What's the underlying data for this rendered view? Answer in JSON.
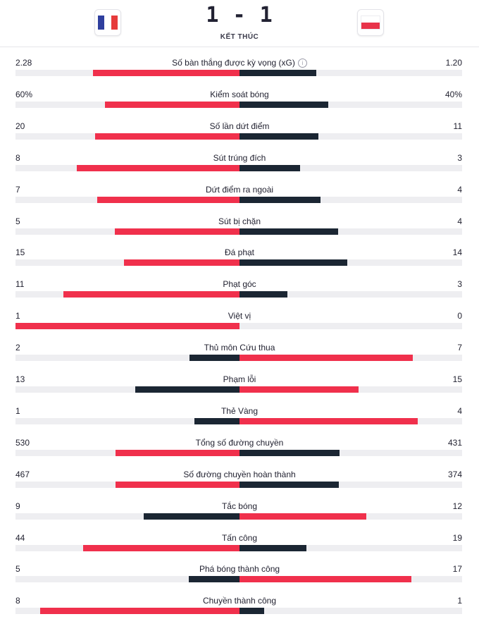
{
  "match": {
    "score": "1 - 1",
    "status": "KẾT THÚC",
    "home_flag": "france-flag",
    "away_flag": "poland-flag"
  },
  "colors": {
    "leading": "#f0304c",
    "trailing": "#1b2633",
    "track": "#eeeef1"
  },
  "stats": [
    {
      "label": "Số bàn thắng được kỳ vọng (xG)",
      "home": "2.28",
      "away": "1.20",
      "home_share": 0.655,
      "away_share": 0.345,
      "info": true
    },
    {
      "label": "Kiểm soát bóng",
      "home": "60%",
      "away": "40%",
      "home_share": 0.6,
      "away_share": 0.4
    },
    {
      "label": "Số lần dứt điểm",
      "home": "20",
      "away": "11",
      "home_share": 0.645,
      "away_share": 0.355
    },
    {
      "label": "Sút trúng đích",
      "home": "8",
      "away": "3",
      "home_share": 0.727,
      "away_share": 0.273
    },
    {
      "label": "Dứt điểm ra ngoài",
      "home": "7",
      "away": "4",
      "home_share": 0.636,
      "away_share": 0.364
    },
    {
      "label": "Sút bị chặn",
      "home": "5",
      "away": "4",
      "home_share": 0.556,
      "away_share": 0.444
    },
    {
      "label": "Đá phạt",
      "home": "15",
      "away": "14",
      "home_share": 0.517,
      "away_share": 0.483
    },
    {
      "label": "Phạt góc",
      "home": "11",
      "away": "3",
      "home_share": 0.786,
      "away_share": 0.214
    },
    {
      "label": "Việt vị",
      "home": "1",
      "away": "0",
      "home_share": 1.0,
      "away_share": 0.0
    },
    {
      "label": "Thủ môn Cứu thua",
      "home": "2",
      "away": "7",
      "home_share": 0.222,
      "away_share": 0.778
    },
    {
      "label": "Phạm lỗi",
      "home": "13",
      "away": "15",
      "home_share": 0.464,
      "away_share": 0.536
    },
    {
      "label": "Thẻ Vàng",
      "home": "1",
      "away": "4",
      "home_share": 0.2,
      "away_share": 0.8
    },
    {
      "label": "Tổng số đường chuyền",
      "home": "530",
      "away": "431",
      "home_share": 0.552,
      "away_share": 0.448
    },
    {
      "label": "Số đường chuyền hoàn thành",
      "home": "467",
      "away": "374",
      "home_share": 0.555,
      "away_share": 0.445
    },
    {
      "label": "Tắc bóng",
      "home": "9",
      "away": "12",
      "home_share": 0.429,
      "away_share": 0.571
    },
    {
      "label": "Tấn công",
      "home": "44",
      "away": "19",
      "home_share": 0.698,
      "away_share": 0.302
    },
    {
      "label": "Phá bóng thành công",
      "home": "5",
      "away": "17",
      "home_share": 0.227,
      "away_share": 0.773
    },
    {
      "label": "Chuyền thành công",
      "home": "8",
      "away": "1",
      "home_share": 0.889,
      "away_share": 0.111
    }
  ]
}
